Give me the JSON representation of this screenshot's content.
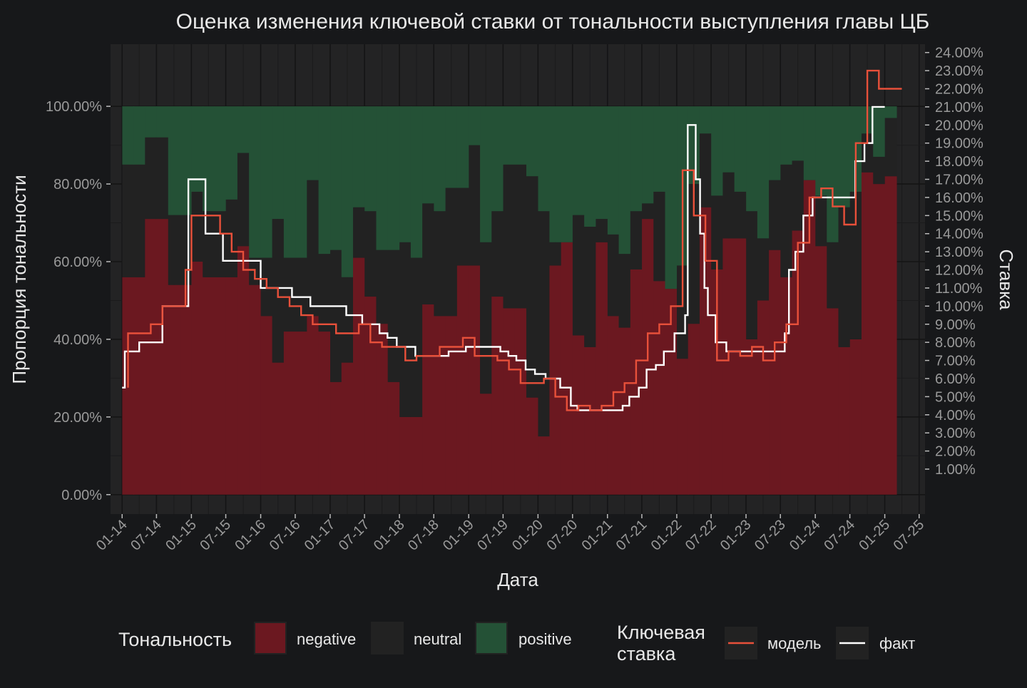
{
  "chart_data": {
    "type": "bar",
    "title": "Оценка изменения ключевой ставки от тональности выступления главы ЦБ",
    "xlabel": "Дата",
    "ylabel_left": "Пропорция тональности",
    "ylabel_right": "Ставка",
    "x_range": [
      "2013-11-01",
      "2025-08-01"
    ],
    "ylim_left": [
      -0.05,
      1.16
    ],
    "ylim_right": [
      -0.0148,
      0.2446
    ],
    "grid": true,
    "legend_position": "bottom",
    "colors": {
      "background": "#17181a",
      "panel": "#232324",
      "negative": "#6b1820",
      "neutral": "#222222",
      "positive": "#245136",
      "model": "#e8503a",
      "fact": "#ffffff",
      "text": "#e8e8e8",
      "tick_text": "#9a9a9a"
    },
    "x_tick_labels": [
      "01-14",
      "07-14",
      "01-15",
      "07-15",
      "01-16",
      "07-16",
      "01-17",
      "07-17",
      "01-18",
      "07-18",
      "01-19",
      "07-19",
      "01-20",
      "07-20",
      "01-21",
      "07-21",
      "01-22",
      "07-22",
      "01-23",
      "07-23",
      "01-24",
      "07-24",
      "01-25",
      "07-25"
    ],
    "x_tick_dates": [
      "2014-01-01",
      "2014-07-01",
      "2015-01-01",
      "2015-07-01",
      "2016-01-01",
      "2016-07-01",
      "2017-01-01",
      "2017-07-01",
      "2018-01-01",
      "2018-07-01",
      "2019-01-01",
      "2019-07-01",
      "2020-01-01",
      "2020-07-01",
      "2021-01-01",
      "2021-07-01",
      "2022-01-01",
      "2022-07-01",
      "2023-01-01",
      "2023-07-01",
      "2024-01-01",
      "2024-07-01",
      "2025-01-01",
      "2025-07-01"
    ],
    "y_left_ticks": [
      "0.00%",
      "20.00%",
      "40.00%",
      "60.00%",
      "80.00%",
      "100.00%"
    ],
    "y_left_values": [
      0,
      0.2,
      0.4,
      0.6,
      0.8,
      1.0
    ],
    "y_right_ticks": [
      "1.00%",
      "2.00%",
      "3.00%",
      "4.00%",
      "5.00%",
      "6.00%",
      "7.00%",
      "8.00%",
      "9.00%",
      "10.00%",
      "11.00%",
      "12.00%",
      "13.00%",
      "14.00%",
      "15.00%",
      "16.00%",
      "17.00%",
      "18.00%",
      "19.00%",
      "20.00%",
      "21.00%",
      "22.00%",
      "23.00%",
      "24.00%"
    ],
    "y_right_values": [
      0.01,
      0.02,
      0.03,
      0.04,
      0.05,
      0.06,
      0.07,
      0.08,
      0.09,
      0.1,
      0.11,
      0.12,
      0.13,
      0.14,
      0.15,
      0.16,
      0.17,
      0.18,
      0.19,
      0.2,
      0.21,
      0.22,
      0.23,
      0.24
    ],
    "tone_legend_title": "Тональность",
    "tone_legend": [
      "negative",
      "neutral",
      "positive"
    ],
    "rate_legend_title": [
      "Ключевая",
      "ставка"
    ],
    "rate_legend": [
      "модель",
      "факт"
    ],
    "tone": [
      {
        "date": "2014-02-01",
        "negative": 0.56,
        "neutral": 0.29
      },
      {
        "date": "2014-04-01",
        "negative": 0.56,
        "neutral": 0.29
      },
      {
        "date": "2014-06-01",
        "negative": 0.71,
        "neutral": 0.21
      },
      {
        "date": "2014-08-01",
        "negative": 0.71,
        "neutral": 0.21
      },
      {
        "date": "2014-10-01",
        "negative": 0.54,
        "neutral": 0.18
      },
      {
        "date": "2014-12-01",
        "negative": 0.54,
        "neutral": 0.18
      },
      {
        "date": "2015-02-01",
        "negative": 0.6,
        "neutral": 0.18
      },
      {
        "date": "2015-04-01",
        "negative": 0.56,
        "neutral": 0.17
      },
      {
        "date": "2015-06-01",
        "negative": 0.56,
        "neutral": 0.17
      },
      {
        "date": "2015-08-01",
        "negative": 0.56,
        "neutral": 0.2
      },
      {
        "date": "2015-10-01",
        "negative": 0.64,
        "neutral": 0.24
      },
      {
        "date": "2015-12-01",
        "negative": 0.54,
        "neutral": 0.07
      },
      {
        "date": "2016-02-01",
        "negative": 0.46,
        "neutral": 0.15
      },
      {
        "date": "2016-04-01",
        "negative": 0.34,
        "neutral": 0.37
      },
      {
        "date": "2016-06-01",
        "negative": 0.42,
        "neutral": 0.19
      },
      {
        "date": "2016-08-01",
        "negative": 0.42,
        "neutral": 0.19
      },
      {
        "date": "2016-10-01",
        "negative": 0.46,
        "neutral": 0.35
      },
      {
        "date": "2016-12-01",
        "negative": 0.42,
        "neutral": 0.2
      },
      {
        "date": "2017-02-01",
        "negative": 0.29,
        "neutral": 0.34
      },
      {
        "date": "2017-04-01",
        "negative": 0.34,
        "neutral": 0.22
      },
      {
        "date": "2017-06-01",
        "negative": 0.61,
        "neutral": 0.13
      },
      {
        "date": "2017-08-01",
        "negative": 0.51,
        "neutral": 0.22
      },
      {
        "date": "2017-10-01",
        "negative": 0.44,
        "neutral": 0.19
      },
      {
        "date": "2017-12-01",
        "negative": 0.29,
        "neutral": 0.34
      },
      {
        "date": "2018-02-01",
        "negative": 0.2,
        "neutral": 0.45
      },
      {
        "date": "2018-04-01",
        "negative": 0.2,
        "neutral": 0.41
      },
      {
        "date": "2018-06-01",
        "negative": 0.49,
        "neutral": 0.26
      },
      {
        "date": "2018-08-01",
        "negative": 0.46,
        "neutral": 0.27
      },
      {
        "date": "2018-10-01",
        "negative": 0.46,
        "neutral": 0.33
      },
      {
        "date": "2018-12-01",
        "negative": 0.59,
        "neutral": 0.2
      },
      {
        "date": "2019-02-01",
        "negative": 0.59,
        "neutral": 0.31
      },
      {
        "date": "2019-04-01",
        "negative": 0.26,
        "neutral": 0.39
      },
      {
        "date": "2019-06-01",
        "negative": 0.51,
        "neutral": 0.22
      },
      {
        "date": "2019-08-01",
        "negative": 0.48,
        "neutral": 0.37
      },
      {
        "date": "2019-10-01",
        "negative": 0.48,
        "neutral": 0.37
      },
      {
        "date": "2019-12-01",
        "negative": 0.25,
        "neutral": 0.57
      },
      {
        "date": "2020-02-01",
        "negative": 0.15,
        "neutral": 0.58
      },
      {
        "date": "2020-04-01",
        "negative": 0.59,
        "neutral": 0.06
      },
      {
        "date": "2020-06-01",
        "negative": 0.65,
        "neutral": 0.0
      },
      {
        "date": "2020-08-01",
        "negative": 0.41,
        "neutral": 0.31
      },
      {
        "date": "2020-10-01",
        "negative": 0.38,
        "neutral": 0.31
      },
      {
        "date": "2020-12-01",
        "negative": 0.65,
        "neutral": 0.06
      },
      {
        "date": "2021-02-01",
        "negative": 0.46,
        "neutral": 0.21
      },
      {
        "date": "2021-04-01",
        "negative": 0.43,
        "neutral": 0.19
      },
      {
        "date": "2021-06-01",
        "negative": 0.58,
        "neutral": 0.15
      },
      {
        "date": "2021-08-01",
        "negative": 0.71,
        "neutral": 0.04
      },
      {
        "date": "2021-10-01",
        "negative": 0.55,
        "neutral": 0.23
      },
      {
        "date": "2021-12-01",
        "negative": 0.53,
        "neutral": 0.0
      },
      {
        "date": "2022-02-01",
        "negative": 0.35,
        "neutral": 0.24
      },
      {
        "date": "2022-04-01",
        "negative": 0.44,
        "neutral": 0.36
      },
      {
        "date": "2022-06-01",
        "negative": 0.74,
        "neutral": 0.19
      },
      {
        "date": "2022-08-01",
        "negative": 0.58,
        "neutral": 0.19
      },
      {
        "date": "2022-10-01",
        "negative": 0.66,
        "neutral": 0.17
      },
      {
        "date": "2022-12-01",
        "negative": 0.66,
        "neutral": 0.12
      },
      {
        "date": "2023-02-01",
        "negative": 0.4,
        "neutral": 0.33
      },
      {
        "date": "2023-04-01",
        "negative": 0.5,
        "neutral": 0.16
      },
      {
        "date": "2023-06-01",
        "negative": 0.63,
        "neutral": 0.18
      },
      {
        "date": "2023-08-01",
        "negative": 0.56,
        "neutral": 0.29
      },
      {
        "date": "2023-10-01",
        "negative": 0.68,
        "neutral": 0.18
      },
      {
        "date": "2023-12-01",
        "negative": 0.81,
        "neutral": 0.0
      },
      {
        "date": "2024-02-01",
        "negative": 0.64,
        "neutral": 0.13
      },
      {
        "date": "2024-04-01",
        "negative": 0.48,
        "neutral": 0.17
      },
      {
        "date": "2024-06-01",
        "negative": 0.38,
        "neutral": 0.36
      },
      {
        "date": "2024-08-01",
        "negative": 0.4,
        "neutral": 0.38
      },
      {
        "date": "2024-10-01",
        "negative": 0.83,
        "neutral": 0.1
      },
      {
        "date": "2024-12-01",
        "negative": 0.8,
        "neutral": 0.07
      },
      {
        "date": "2025-02-01",
        "negative": 0.82,
        "neutral": 0.15
      }
    ],
    "rate_fact": [
      [
        "2014-01-01",
        0.055
      ],
      [
        "2014-01-15",
        0.075
      ],
      [
        "2014-03-01",
        0.075
      ],
      [
        "2014-04-01",
        0.08
      ],
      [
        "2014-07-01",
        0.08
      ],
      [
        "2014-08-01",
        0.1
      ],
      [
        "2014-11-01",
        0.1
      ],
      [
        "2014-12-16",
        0.17
      ],
      [
        "2015-02-01",
        0.17
      ],
      [
        "2015-03-16",
        0.14
      ],
      [
        "2015-06-01",
        0.14
      ],
      [
        "2015-06-16",
        0.125
      ],
      [
        "2015-12-01",
        0.125
      ],
      [
        "2016-01-01",
        0.11
      ],
      [
        "2016-06-14",
        0.105
      ],
      [
        "2016-09-19",
        0.1
      ],
      [
        "2017-03-27",
        0.095
      ],
      [
        "2017-06-19",
        0.09
      ],
      [
        "2017-09-18",
        0.085
      ],
      [
        "2017-10-30",
        0.0825
      ],
      [
        "2017-12-18",
        0.0775
      ],
      [
        "2018-03-26",
        0.0725
      ],
      [
        "2018-09-17",
        0.075
      ],
      [
        "2018-12-17",
        0.0775
      ],
      [
        "2019-06-17",
        0.075
      ],
      [
        "2019-07-29",
        0.0725
      ],
      [
        "2019-09-09",
        0.07
      ],
      [
        "2019-10-28",
        0.065
      ],
      [
        "2019-12-16",
        0.0625
      ],
      [
        "2020-02-10",
        0.06
      ],
      [
        "2020-04-27",
        0.055
      ],
      [
        "2020-06-22",
        0.045
      ],
      [
        "2020-07-27",
        0.0425
      ],
      [
        "2021-03-22",
        0.045
      ],
      [
        "2021-04-26",
        0.05
      ],
      [
        "2021-06-15",
        0.055
      ],
      [
        "2021-07-26",
        0.065
      ],
      [
        "2021-09-13",
        0.0675
      ],
      [
        "2021-10-25",
        0.075
      ],
      [
        "2021-12-20",
        0.085
      ],
      [
        "2022-02-14",
        0.095
      ],
      [
        "2022-02-28",
        0.2
      ],
      [
        "2022-04-11",
        0.17
      ],
      [
        "2022-05-04",
        0.14
      ],
      [
        "2022-05-27",
        0.11
      ],
      [
        "2022-06-14",
        0.095
      ],
      [
        "2022-07-25",
        0.08
      ],
      [
        "2022-09-19",
        0.075
      ],
      [
        "2023-07-24",
        0.085
      ],
      [
        "2023-08-15",
        0.12
      ],
      [
        "2023-09-18",
        0.13
      ],
      [
        "2023-10-30",
        0.15
      ],
      [
        "2023-12-18",
        0.16
      ],
      [
        "2024-07-29",
        0.18
      ],
      [
        "2024-09-16",
        0.19
      ],
      [
        "2024-10-28",
        0.21
      ],
      [
        "2025-01-01",
        0.21
      ]
    ],
    "rate_model": [
      [
        "2014-02-01",
        0.055
      ],
      [
        "2014-02-01",
        0.085
      ],
      [
        "2014-06-01",
        0.09
      ],
      [
        "2014-08-01",
        0.1
      ],
      [
        "2014-12-01",
        0.12
      ],
      [
        "2015-01-01",
        0.15
      ],
      [
        "2015-06-01",
        0.14
      ],
      [
        "2015-08-01",
        0.13
      ],
      [
        "2015-10-01",
        0.12
      ],
      [
        "2015-12-01",
        0.115
      ],
      [
        "2016-02-01",
        0.11
      ],
      [
        "2016-04-01",
        0.105
      ],
      [
        "2016-06-01",
        0.1
      ],
      [
        "2016-08-01",
        0.095
      ],
      [
        "2016-10-01",
        0.09
      ],
      [
        "2017-02-01",
        0.085
      ],
      [
        "2017-06-01",
        0.09
      ],
      [
        "2017-08-01",
        0.08
      ],
      [
        "2017-10-01",
        0.0775
      ],
      [
        "2018-02-01",
        0.07
      ],
      [
        "2018-04-01",
        0.0725
      ],
      [
        "2018-08-01",
        0.0775
      ],
      [
        "2018-12-01",
        0.0825
      ],
      [
        "2019-02-01",
        0.0725
      ],
      [
        "2019-06-01",
        0.07
      ],
      [
        "2019-08-01",
        0.065
      ],
      [
        "2019-10-01",
        0.0575
      ],
      [
        "2019-12-01",
        0.0575
      ],
      [
        "2020-02-01",
        0.06
      ],
      [
        "2020-04-01",
        0.05
      ],
      [
        "2020-06-01",
        0.0425
      ],
      [
        "2020-08-01",
        0.045
      ],
      [
        "2020-10-01",
        0.0425
      ],
      [
        "2020-12-01",
        0.045
      ],
      [
        "2021-02-01",
        0.0525
      ],
      [
        "2021-04-01",
        0.0575
      ],
      [
        "2021-06-01",
        0.07
      ],
      [
        "2021-08-01",
        0.085
      ],
      [
        "2021-10-01",
        0.09
      ],
      [
        "2021-12-01",
        0.1
      ],
      [
        "2022-02-01",
        0.175
      ],
      [
        "2022-04-01",
        0.15
      ],
      [
        "2022-06-01",
        0.125
      ],
      [
        "2022-08-01",
        0.07
      ],
      [
        "2022-10-01",
        0.075
      ],
      [
        "2022-12-01",
        0.0725
      ],
      [
        "2023-02-01",
        0.0775
      ],
      [
        "2023-04-01",
        0.07
      ],
      [
        "2023-06-01",
        0.08
      ],
      [
        "2023-08-01",
        0.09
      ],
      [
        "2023-10-01",
        0.135
      ],
      [
        "2023-12-01",
        0.16
      ],
      [
        "2024-02-01",
        0.165
      ],
      [
        "2024-04-01",
        0.155
      ],
      [
        "2024-06-01",
        0.145
      ],
      [
        "2024-08-01",
        0.19
      ],
      [
        "2024-10-01",
        0.23
      ],
      [
        "2024-12-01",
        0.22
      ],
      [
        "2025-04-01",
        0.22
      ]
    ]
  }
}
